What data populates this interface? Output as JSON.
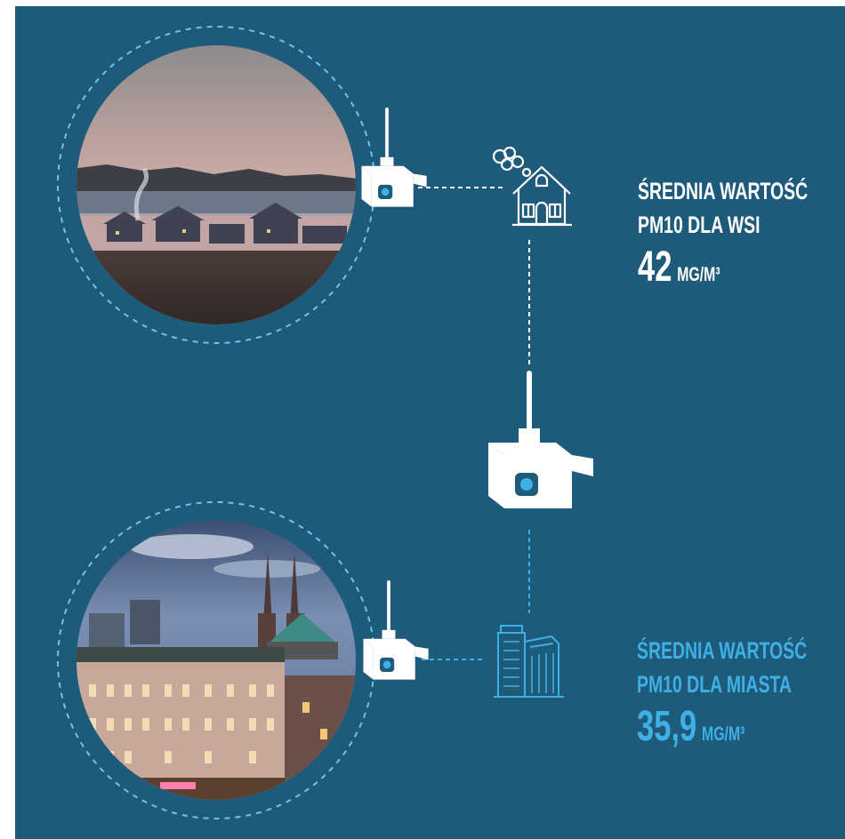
{
  "colors": {
    "background": "#1e5a7a",
    "white": "#ffffff",
    "accent_blue": "#3eb0e6",
    "ring_dash": "#6fc3ec"
  },
  "icons": {
    "sensor": "air-quality-sensor-icon",
    "house": "house-with-smoke-icon",
    "buildings": "city-buildings-icon",
    "photo_village": "village-photo",
    "photo_city": "city-photo"
  },
  "village": {
    "label_line1": "ŚREDNIA WARTOŚĆ",
    "label_line2": "PM10 DLA WSI",
    "value": "42",
    "unit": "μG/M³"
  },
  "city": {
    "label_line1": "ŚREDNIA WARTOŚĆ",
    "label_line2": "PM10 DLA MIASTA",
    "value": "35,9",
    "unit": "μG/M³"
  }
}
